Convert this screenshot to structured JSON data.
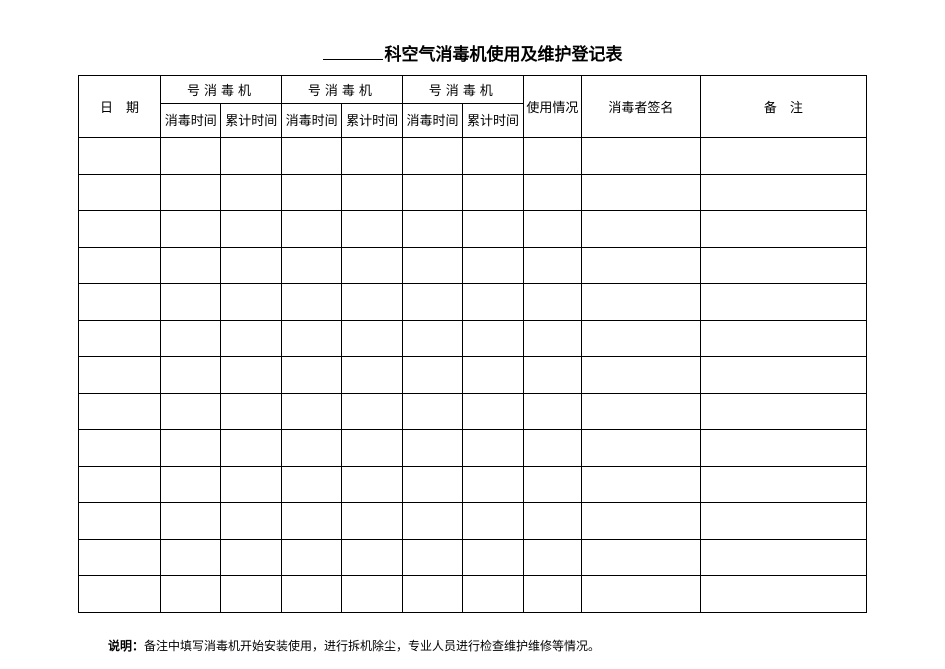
{
  "title": {
    "blank_prefix": "",
    "text": "科空气消毒机使用及维护登记表"
  },
  "headers": {
    "date": "日　期",
    "machine_group": "号消毒机",
    "sub_disinfect_time": "消毒时间",
    "sub_cumulative_time": "累计时间",
    "usage": "使用情况",
    "signature": "消毒者签名",
    "remark": "备　注"
  },
  "body": {
    "row_count": 13,
    "col_count": 10
  },
  "footnote": {
    "label": "说明：",
    "text": "备注中填写消毒机开始安装使用，进行拆机除尘，专业人员进行检查维护维修等情况。"
  },
  "style": {
    "border_color": "#000000",
    "background_color": "#ffffff",
    "title_fontsize": 17,
    "cell_fontsize": 13,
    "footnote_fontsize": 12
  }
}
